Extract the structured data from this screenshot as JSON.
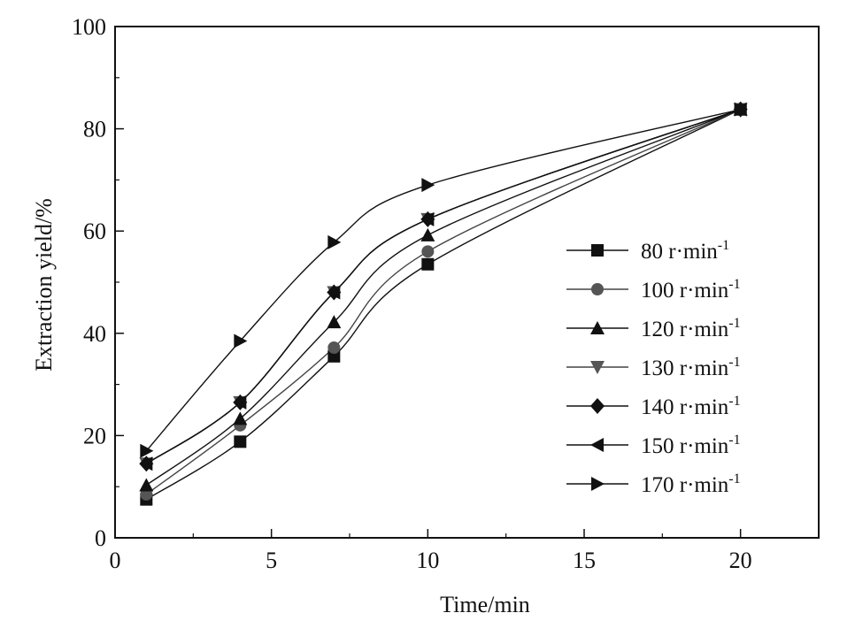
{
  "chart_data": {
    "type": "line",
    "title": "",
    "xlabel": "Time/min",
    "ylabel": "Extraction yield/%",
    "xlim": [
      0,
      22.5
    ],
    "ylim": [
      0,
      100
    ],
    "xticks": [
      0,
      5,
      10,
      15,
      20
    ],
    "yticks": [
      0,
      20,
      40,
      60,
      80,
      100
    ],
    "x_minor_ticks": [
      2.5,
      7.5,
      12.5,
      17.5
    ],
    "y_minor_ticks": [
      10,
      30,
      50,
      70,
      90
    ],
    "x": [
      1,
      4,
      7,
      10,
      20
    ],
    "grid": false,
    "legend_position": "right",
    "legend_unit": "r·min",
    "legend_sup": "-1",
    "series": [
      {
        "name": "80",
        "marker": "square",
        "color": "#111111",
        "values": [
          7.5,
          18.8,
          35.5,
          53.5,
          83.8
        ]
      },
      {
        "name": "100",
        "marker": "circle",
        "color": "#555555",
        "values": [
          8.5,
          22.0,
          37.2,
          56.0,
          83.8
        ]
      },
      {
        "name": "120",
        "marker": "triangle-up",
        "color": "#111111",
        "values": [
          10.3,
          23.3,
          42.2,
          59.2,
          83.8
        ]
      },
      {
        "name": "130",
        "marker": "triangle-down",
        "color": "#555555",
        "values": [
          14.5,
          26.5,
          48.0,
          62.3,
          83.8
        ]
      },
      {
        "name": "140",
        "marker": "diamond",
        "color": "#111111",
        "values": [
          14.5,
          26.5,
          48.0,
          62.3,
          83.8
        ]
      },
      {
        "name": "150",
        "marker": "triangle-left",
        "color": "#111111",
        "values": [
          14.5,
          26.5,
          48.0,
          62.3,
          83.8
        ]
      },
      {
        "name": "170",
        "marker": "triangle-right",
        "color": "#111111",
        "values": [
          17.0,
          38.5,
          57.8,
          69.0,
          83.8
        ]
      }
    ]
  }
}
